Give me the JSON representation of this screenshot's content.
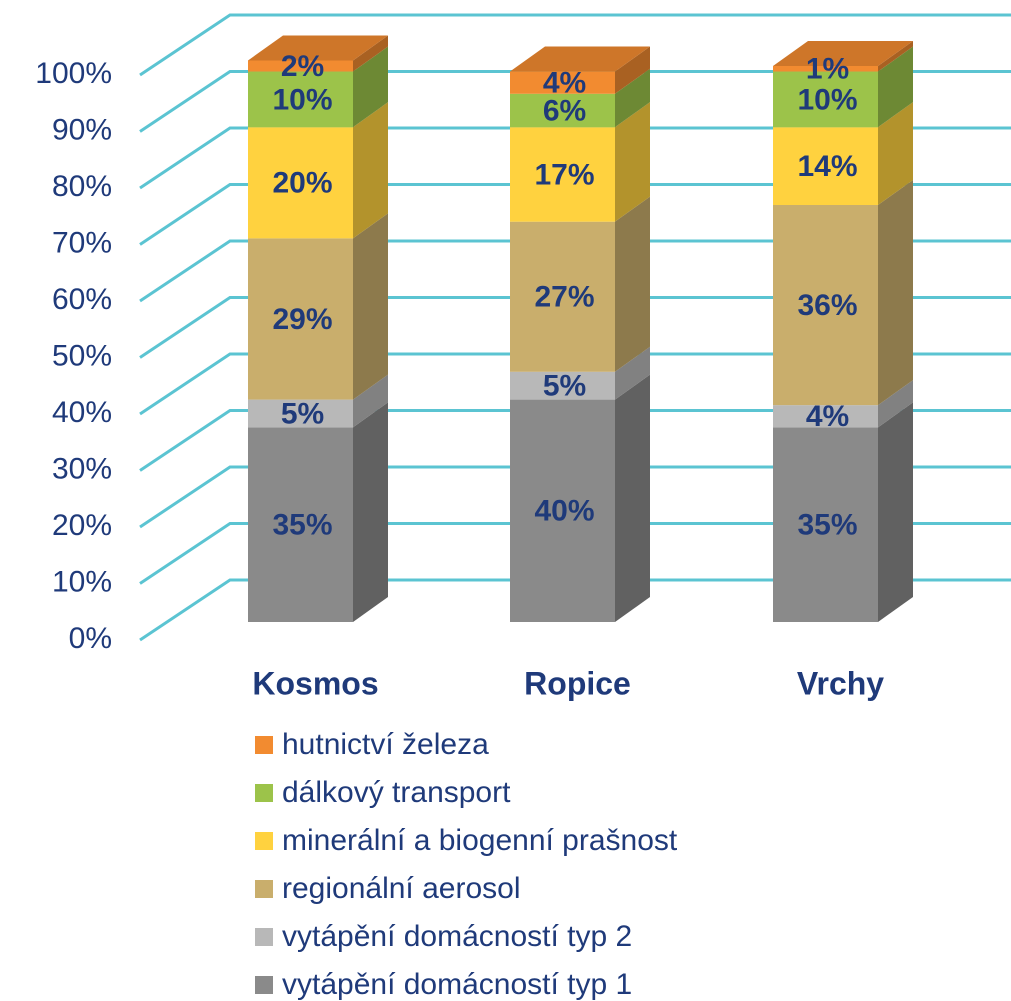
{
  "chart_data": {
    "type": "stacked_bar_3d",
    "categories": [
      "Kosmos",
      "Ropice",
      "Vrchy"
    ],
    "series": [
      {
        "name": "vytápění domácností typ 1",
        "color": "#8a8a8a",
        "values": [
          35,
          40,
          35
        ],
        "value_labels": [
          "35%",
          "40%",
          "35%"
        ]
      },
      {
        "name": "vytápění domácností typ 2",
        "color": "#b8b8b8",
        "values": [
          5,
          5,
          4
        ],
        "value_labels": [
          "5%",
          "5%",
          "4%"
        ]
      },
      {
        "name": "regionální aerosol",
        "color": "#c9ae6c",
        "values": [
          29,
          27,
          36
        ],
        "value_labels": [
          "29%",
          "27%",
          "36%"
        ]
      },
      {
        "name": "minerální a biogenní prašnost",
        "color": "#ffd23f",
        "values": [
          20,
          17,
          14
        ],
        "value_labels": [
          "20%",
          "17%",
          "14%"
        ]
      },
      {
        "name": "dálkový transport",
        "color": "#9cc34a",
        "values": [
          10,
          6,
          10
        ],
        "value_labels": [
          "10%",
          "6%",
          "10%"
        ]
      },
      {
        "name": "hutnictví železa",
        "color": "#f28b30",
        "values": [
          2,
          4,
          1
        ],
        "value_labels": [
          "2%",
          "4%",
          "1%"
        ]
      }
    ],
    "ylim": [
      0,
      100
    ],
    "yticks": [
      {
        "value": 0,
        "label": "0%"
      },
      {
        "value": 10,
        "label": "10%"
      },
      {
        "value": 20,
        "label": "20%"
      },
      {
        "value": 30,
        "label": "30%"
      },
      {
        "value": 40,
        "label": "40%"
      },
      {
        "value": 50,
        "label": "50%"
      },
      {
        "value": 60,
        "label": "60%"
      },
      {
        "value": 70,
        "label": "70%"
      },
      {
        "value": 80,
        "label": "80%"
      },
      {
        "value": 90,
        "label": "90%"
      },
      {
        "value": 100,
        "label": "100%"
      }
    ],
    "grid": true,
    "grid_color": "#5bc4d2",
    "legend": "bottom"
  }
}
